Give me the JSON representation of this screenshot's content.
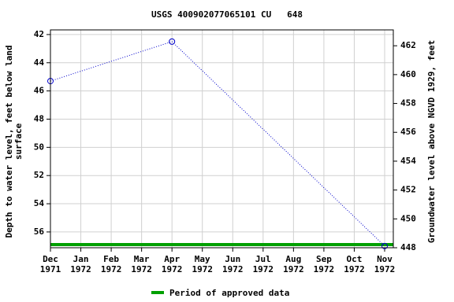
{
  "chart_data": {
    "type": "line",
    "title": "USGS 400902077065101 CU   648",
    "y_label": [
      "Depth to water level, feet below land",
      "surface"
    ],
    "y2_label": "Groundwater level above NGVD 1929, feet",
    "x": [
      "1971-12",
      "1972-04",
      "1972-11"
    ],
    "series": [
      {
        "name": "Depth to water level",
        "color": "#0000cc",
        "values": [
          45.3,
          42.5,
          57.0
        ]
      }
    ],
    "xlim": [
      "1971-12",
      "1972-11"
    ],
    "xticks": [
      {
        "value": "1971-12",
        "label": [
          "Dec",
          "1971"
        ]
      },
      {
        "value": "1972-01",
        "label": [
          "Jan",
          "1972"
        ]
      },
      {
        "value": "1972-02",
        "label": [
          "Feb",
          "1972"
        ]
      },
      {
        "value": "1972-03",
        "label": [
          "Mar",
          "1972"
        ]
      },
      {
        "value": "1972-04",
        "label": [
          "Apr",
          "1972"
        ]
      },
      {
        "value": "1972-05",
        "label": [
          "May",
          "1972"
        ]
      },
      {
        "value": "1972-06",
        "label": [
          "Jun",
          "1972"
        ]
      },
      {
        "value": "1972-07",
        "label": [
          "Jul",
          "1972"
        ]
      },
      {
        "value": "1972-08",
        "label": [
          "Aug",
          "1972"
        ]
      },
      {
        "value": "1972-09",
        "label": [
          "Sep",
          "1972"
        ]
      },
      {
        "value": "1972-10",
        "label": [
          "Oct",
          "1972"
        ]
      },
      {
        "value": "1972-11",
        "label": [
          "Nov",
          "1972"
        ]
      }
    ],
    "ylim": [
      41.67,
      57.12
    ],
    "y_inverted": true,
    "yticks": [
      42,
      44,
      46,
      48,
      50,
      52,
      54,
      56
    ],
    "y2lim": [
      448,
      463.1
    ],
    "y2ticks": [
      448,
      450,
      452,
      454,
      456,
      458,
      460,
      462
    ],
    "grid": true,
    "approved_period": {
      "name": "Period of approved data",
      "color": "#00a000",
      "start": "1971-12",
      "end": "1972-11"
    }
  }
}
